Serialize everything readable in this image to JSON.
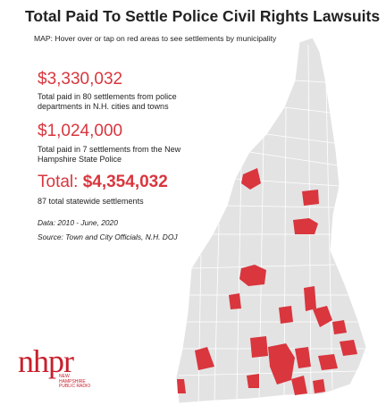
{
  "header": {
    "title": "Total Paid To Settle Police Civil Rights Lawsuits",
    "subtitle": "MAP: Hover over or tap on red areas to see settlements by municipality"
  },
  "stats": [
    {
      "amount": "$3,330,032",
      "description": "Total paid in 80 settlements from police departments in N.H. cities and towns"
    },
    {
      "amount": "$1,024,000",
      "description": "Total paid in 7 settlements from the New Hampshire State Police"
    }
  ],
  "total": {
    "label": "Total:",
    "amount": "$4,354,032",
    "description": "87 total statewide settlements"
  },
  "notes": [
    "Data: 2010 - June, 2020",
    "Source: Town and City Officials, N.H. DOJ"
  ],
  "logo": {
    "name": "nhpr",
    "subtitle": "NEW HAMPSHIRE PUBLIC RADIO"
  }
}
